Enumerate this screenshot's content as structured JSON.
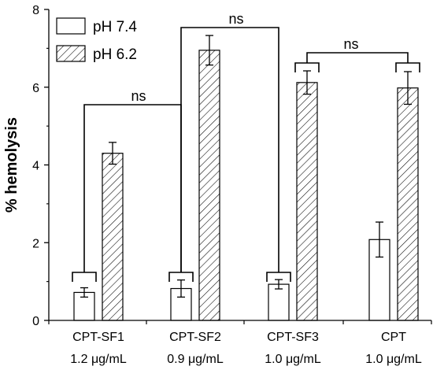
{
  "chart_data": {
    "type": "bar",
    "ylabel": "% hemolysis",
    "ylim": [
      0,
      8
    ],
    "yticks": [
      0,
      2,
      4,
      6,
      8
    ],
    "categories": [
      "CPT-SF1",
      "CPT-SF2",
      "CPT-SF3",
      "CPT"
    ],
    "category_sublabels": [
      "1.2 μg/mL",
      "0.9 μg/mL",
      "1.0 μg/mL",
      "1.0 μg/mL"
    ],
    "series": [
      {
        "name": "pH 7.4",
        "values": [
          0.72,
          0.82,
          0.93,
          2.08
        ],
        "errors": [
          0.12,
          0.22,
          0.12,
          0.45
        ],
        "fill": "open",
        "color": "#000000"
      },
      {
        "name": "pH 6.2",
        "values": [
          4.3,
          6.95,
          6.12,
          5.98
        ],
        "errors": [
          0.28,
          0.38,
          0.3,
          0.42
        ],
        "fill": "hatched",
        "color": "#000000"
      }
    ],
    "legend_position": "top-left",
    "grid": false,
    "annotations": [
      {
        "text": "ns",
        "compares": [
          "CPT-SF1 pH 7.4",
          "CPT-SF2 pH 7.4"
        ]
      },
      {
        "text": "ns",
        "compares": [
          "CPT-SF2 pH 7.4",
          "CPT-SF3 pH 7.4"
        ]
      },
      {
        "text": "ns",
        "compares": [
          "CPT-SF3 pH 6.2",
          "CPT pH 6.2"
        ]
      }
    ]
  }
}
